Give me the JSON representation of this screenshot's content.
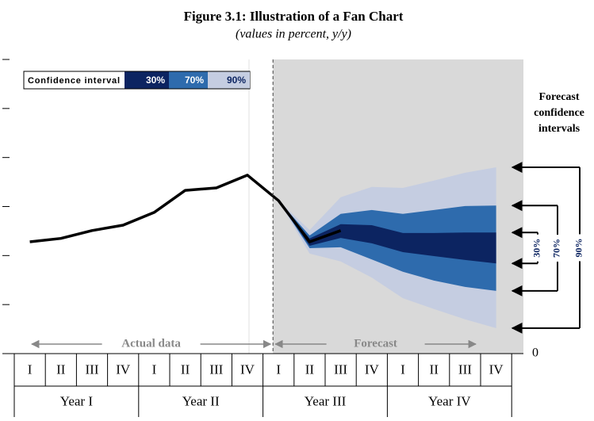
{
  "chart_data": {
    "type": "fan",
    "title": "Figure 3.1: Illustration of a Fan Chart",
    "subtitle": "(values in percent, y/y)",
    "categories": [
      "I",
      "II",
      "III",
      "IV",
      "I",
      "II",
      "III",
      "IV",
      "I",
      "II",
      "III",
      "IV",
      "I",
      "II",
      "III",
      "IV"
    ],
    "years": [
      "Year I",
      "Year II",
      "Year III",
      "Year IV"
    ],
    "ylim": [
      0,
      6
    ],
    "yticks": [
      0
    ],
    "minor_yticks": [
      1,
      2,
      3,
      4,
      5,
      6
    ],
    "line_color": "#000000",
    "values": [
      2.28,
      2.35,
      2.51,
      2.62,
      2.88,
      3.33,
      3.38,
      3.64,
      3.12,
      2.28,
      2.51,
      null,
      null,
      null,
      null,
      null
    ],
    "legend_title": "Confidence interval",
    "bands": [
      {
        "name": "30%",
        "color": "#0c2461",
        "upper": [
          null,
          null,
          null,
          null,
          null,
          null,
          null,
          null,
          3.12,
          2.35,
          2.64,
          2.62,
          2.46,
          2.46,
          2.47,
          2.47
        ],
        "lower": [
          null,
          null,
          null,
          null,
          null,
          null,
          null,
          null,
          3.12,
          2.2,
          2.36,
          2.25,
          2.07,
          1.99,
          1.91,
          1.84
        ]
      },
      {
        "name": "70%",
        "color": "#2e6bad",
        "upper": [
          null,
          null,
          null,
          null,
          null,
          null,
          null,
          null,
          3.12,
          2.41,
          2.85,
          2.93,
          2.85,
          2.93,
          3.01,
          3.02
        ],
        "lower": [
          null,
          null,
          null,
          null,
          null,
          null,
          null,
          null,
          3.12,
          2.15,
          2.17,
          1.92,
          1.67,
          1.49,
          1.36,
          1.28
        ]
      },
      {
        "name": "90%",
        "color": "#c5cde1",
        "upper": [
          null,
          null,
          null,
          null,
          null,
          null,
          null,
          null,
          3.12,
          2.52,
          3.19,
          3.4,
          3.38,
          3.53,
          3.69,
          3.8
        ],
        "lower": [
          null,
          null,
          null,
          null,
          null,
          null,
          null,
          null,
          3.12,
          2.04,
          1.88,
          1.55,
          1.13,
          0.91,
          0.7,
          0.52
        ]
      }
    ],
    "actual_label": "Actual data",
    "forecast_label": "Forecast",
    "intervals_label": "Forecast confidence intervals"
  }
}
